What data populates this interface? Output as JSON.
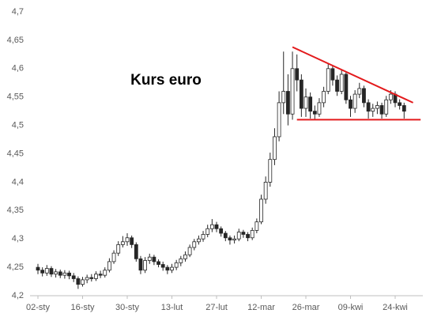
{
  "chart_data": {
    "type": "candlestick",
    "title": "Kurs euro",
    "categories": [
      "02-sty",
      null,
      null,
      null,
      null,
      null,
      null,
      null,
      null,
      null,
      "16-sty",
      null,
      null,
      null,
      null,
      null,
      null,
      null,
      null,
      null,
      "30-sty",
      null,
      null,
      null,
      null,
      null,
      null,
      null,
      null,
      null,
      "13-lut",
      null,
      null,
      null,
      null,
      null,
      null,
      null,
      null,
      null,
      "27-lut",
      null,
      null,
      null,
      null,
      null,
      null,
      null,
      null,
      null,
      "12-mar",
      null,
      null,
      null,
      null,
      null,
      null,
      null,
      null,
      null,
      "26-mar",
      null,
      null,
      null,
      null,
      null,
      null,
      null,
      null,
      null,
      "09-kwi",
      null,
      null,
      null,
      null,
      null,
      null,
      null,
      null,
      null,
      "24-kwi",
      null,
      null
    ],
    "open": [
      4.25,
      4.245,
      4.24,
      4.248,
      4.238,
      4.242,
      4.236,
      4.24,
      4.235,
      4.23,
      4.22,
      4.228,
      4.232,
      4.23,
      4.238,
      4.236,
      4.245,
      4.26,
      4.275,
      4.29,
      4.295,
      4.302,
      4.29,
      4.265,
      4.245,
      4.262,
      4.268,
      4.26,
      4.255,
      4.25,
      4.245,
      4.25,
      4.258,
      4.265,
      4.272,
      4.285,
      4.295,
      4.3,
      4.308,
      4.318,
      4.325,
      4.318,
      4.31,
      4.302,
      4.298,
      4.3,
      4.312,
      4.308,
      4.302,
      4.315,
      4.33,
      4.37,
      4.4,
      4.44,
      4.48,
      4.54,
      4.56,
      4.52,
      4.6,
      4.58,
      4.53,
      4.55,
      4.525,
      4.52,
      4.54,
      4.56,
      4.6,
      4.58,
      4.56,
      4.59,
      4.545,
      4.53,
      4.555,
      4.565,
      4.54,
      4.525,
      4.53,
      4.535,
      4.52,
      4.545,
      4.555,
      4.54,
      4.535
    ],
    "high": [
      4.256,
      4.25,
      4.254,
      4.252,
      4.247,
      4.246,
      4.245,
      4.244,
      4.24,
      4.234,
      4.233,
      4.237,
      4.238,
      4.243,
      4.244,
      4.25,
      4.266,
      4.28,
      4.296,
      4.305,
      4.31,
      4.306,
      4.294,
      4.27,
      4.268,
      4.274,
      4.272,
      4.264,
      4.26,
      4.254,
      4.256,
      4.263,
      4.27,
      4.278,
      4.29,
      4.3,
      4.306,
      4.314,
      4.325,
      4.335,
      4.33,
      4.322,
      4.314,
      4.306,
      4.306,
      4.318,
      4.316,
      4.312,
      4.32,
      4.336,
      4.378,
      4.41,
      4.452,
      4.495,
      4.56,
      4.63,
      4.59,
      4.63,
      4.625,
      4.59,
      4.565,
      4.558,
      4.535,
      4.548,
      4.568,
      4.608,
      4.605,
      4.588,
      4.598,
      4.595,
      4.552,
      4.562,
      4.575,
      4.57,
      4.546,
      4.538,
      4.542,
      4.54,
      4.552,
      4.562,
      4.56,
      4.546,
      4.54
    ],
    "low": [
      4.238,
      4.234,
      4.235,
      4.233,
      4.232,
      4.231,
      4.23,
      4.229,
      4.224,
      4.212,
      4.216,
      4.222,
      4.225,
      4.226,
      4.231,
      4.232,
      4.241,
      4.256,
      4.27,
      4.285,
      4.288,
      4.284,
      4.26,
      4.238,
      4.24,
      4.256,
      4.254,
      4.25,
      4.244,
      4.238,
      4.24,
      4.245,
      4.252,
      4.26,
      4.268,
      4.28,
      4.29,
      4.295,
      4.303,
      4.312,
      4.312,
      4.304,
      4.296,
      4.29,
      4.292,
      4.296,
      4.302,
      4.296,
      4.298,
      4.31,
      4.326,
      4.362,
      4.392,
      4.43,
      4.472,
      4.52,
      4.5,
      4.51,
      4.56,
      4.515,
      4.515,
      4.512,
      4.51,
      4.515,
      4.532,
      4.555,
      4.57,
      4.552,
      4.555,
      4.538,
      4.515,
      4.522,
      4.548,
      4.532,
      4.512,
      4.515,
      4.52,
      4.512,
      4.515,
      4.538,
      4.532,
      4.528,
      4.512
    ],
    "close": [
      4.245,
      4.24,
      4.248,
      4.238,
      4.242,
      4.236,
      4.24,
      4.235,
      4.23,
      4.22,
      4.228,
      4.232,
      4.23,
      4.238,
      4.236,
      4.245,
      4.26,
      4.275,
      4.29,
      4.295,
      4.302,
      4.29,
      4.265,
      4.245,
      4.262,
      4.268,
      4.26,
      4.255,
      4.25,
      4.245,
      4.25,
      4.258,
      4.265,
      4.272,
      4.285,
      4.295,
      4.3,
      4.308,
      4.318,
      4.325,
      4.318,
      4.31,
      4.302,
      4.298,
      4.3,
      4.312,
      4.308,
      4.302,
      4.315,
      4.33,
      4.37,
      4.4,
      4.44,
      4.48,
      4.54,
      4.56,
      4.52,
      4.6,
      4.58,
      4.53,
      4.55,
      4.525,
      4.52,
      4.54,
      4.56,
      4.6,
      4.58,
      4.56,
      4.59,
      4.545,
      4.53,
      4.555,
      4.565,
      4.54,
      4.525,
      4.53,
      4.535,
      4.52,
      4.545,
      4.555,
      4.54,
      4.535,
      4.525
    ],
    "ylim": [
      4.2,
      4.7
    ],
    "yticks": [
      {
        "value": 4.2,
        "label": "4,2"
      },
      {
        "value": 4.25,
        "label": "4,25"
      },
      {
        "value": 4.3,
        "label": "4,3"
      },
      {
        "value": 4.35,
        "label": "4,35"
      },
      {
        "value": 4.4,
        "label": "4,4"
      },
      {
        "value": 4.45,
        "label": "4,45"
      },
      {
        "value": 4.5,
        "label": "4,5"
      },
      {
        "value": 4.55,
        "label": "4,55"
      },
      {
        "value": 4.6,
        "label": "4,6"
      },
      {
        "value": 4.65,
        "label": "4,65"
      },
      {
        "value": 4.7,
        "label": "4,7"
      }
    ],
    "up_color": "#ffffff",
    "down_color": "#262626",
    "trendlines": [
      {
        "color": "#e31a1c",
        "x": [
          57,
          84
        ],
        "y": [
          4.638,
          4.54
        ]
      },
      {
        "color": "#e31a1c",
        "x": [
          58,
          85.7
        ],
        "y": [
          4.51,
          4.51
        ]
      }
    ]
  }
}
